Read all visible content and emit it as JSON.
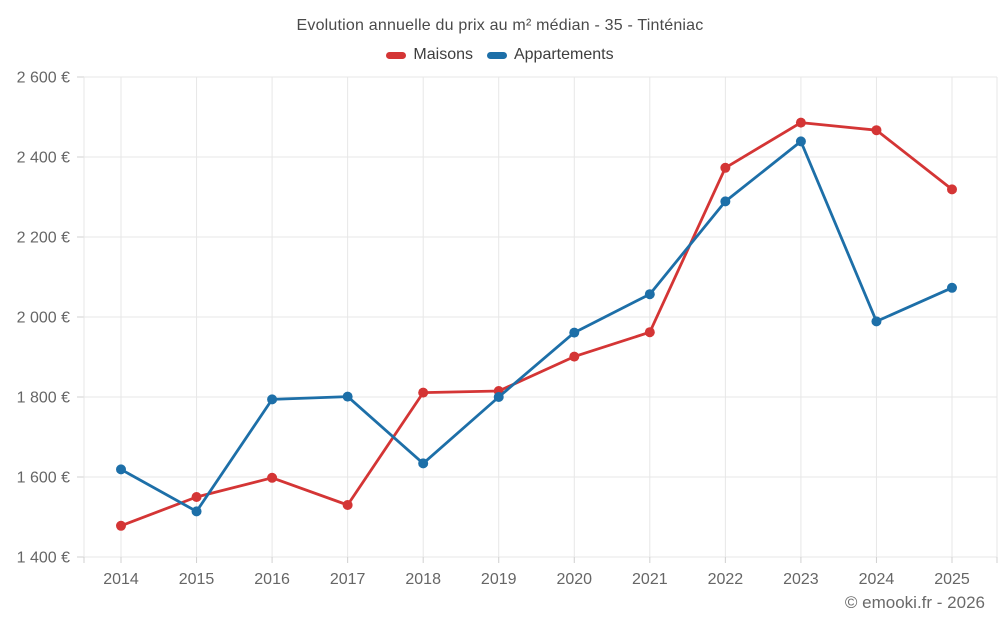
{
  "chart_data": {
    "type": "line",
    "title": "Evolution annuelle du prix au m² médian - 35 - Tinténiac",
    "categories": [
      "2014",
      "2015",
      "2016",
      "2017",
      "2018",
      "2019",
      "2020",
      "2021",
      "2022",
      "2023",
      "2024",
      "2025"
    ],
    "series": [
      {
        "name": "Maisons",
        "color": "#d43535",
        "values": [
          1478,
          1550,
          1598,
          1530,
          1811,
          1815,
          1901,
          1962,
          2373,
          2486,
          2467,
          2319
        ]
      },
      {
        "name": "Appartements",
        "color": "#1d6fa8",
        "values": [
          1619,
          1514,
          1794,
          1801,
          1634,
          1800,
          1961,
          2057,
          2289,
          2439,
          1989,
          2073
        ]
      }
    ],
    "xlabel": "",
    "ylabel": "",
    "ylim": [
      1400,
      2600
    ],
    "ytick_step": 200,
    "ytick_labels": [
      "1 400 €",
      "1 600 €",
      "1 800 €",
      "2 000 €",
      "2 200 €",
      "2 400 €",
      "2 600 €"
    ],
    "grid": true,
    "legend_position": "top",
    "marker": "circle"
  },
  "footer": {
    "text": "© emooki.fr - 2026"
  },
  "colors": {
    "background": "#ffffff",
    "gridline": "#e7e7e7",
    "tick": "#d0d0d0",
    "axis_label": "#666666",
    "title_text": "#4a4a4a",
    "footer_text": "#6a6a6a"
  }
}
